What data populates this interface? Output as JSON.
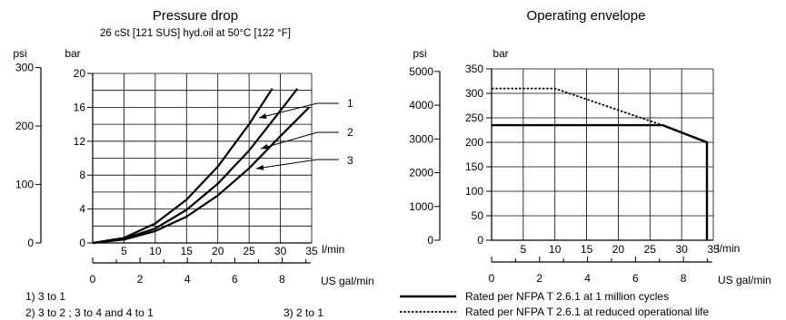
{
  "chart_data": [
    {
      "type": "line",
      "title": "Pressure drop",
      "subtitle": "26 cSt [121 SUS] hyd.oil at 50°C [122 °F]",
      "xlabel": "l/min",
      "ylabel": "bar",
      "x_secondary_label": "US gal/min",
      "y_secondary_label": "psi",
      "xlim": [
        0,
        35
      ],
      "ylim": [
        0,
        20
      ],
      "x_ticks": [
        "5",
        "10",
        "15",
        "20",
        "25",
        "30",
        "35"
      ],
      "y_ticks": [
        "0",
        "4",
        "8",
        "12",
        "16",
        "20"
      ],
      "x_secondary_ticks": [
        "0",
        "2",
        "4",
        "6",
        "8"
      ],
      "y_secondary_ticks": [
        "0",
        "100",
        "200",
        "300"
      ],
      "grid": true,
      "series": [
        {
          "name": "1",
          "x": [
            0,
            5,
            10,
            15,
            20,
            25,
            28.7
          ],
          "y": [
            0,
            0.6,
            2.3,
            5.1,
            9.0,
            14.0,
            18.2
          ]
        },
        {
          "name": "2",
          "x": [
            0,
            5,
            10,
            15,
            20,
            25,
            30,
            32.7
          ],
          "y": [
            0,
            0.5,
            1.7,
            3.9,
            7.0,
            10.9,
            15.6,
            18.2
          ]
        },
        {
          "name": "3",
          "x": [
            0,
            5,
            10,
            15,
            20,
            25,
            30,
            34.6
          ],
          "y": [
            0,
            0.4,
            1.4,
            3.1,
            5.6,
            8.8,
            12.6,
            16.0
          ]
        }
      ],
      "legend_notes": [
        "1) 3 to 1",
        "2) 3 to 2 ; 3 to 4 and 4 to 1",
        "3) 2 to 1"
      ]
    },
    {
      "type": "line",
      "title": "Operating envelope",
      "xlabel": "l/min",
      "ylabel": "bar",
      "x_secondary_label": "US gal/min",
      "y_secondary_label": "psi",
      "xlim": [
        0,
        35
      ],
      "ylim": [
        0,
        350
      ],
      "x_ticks": [
        "5",
        "10",
        "15",
        "20",
        "25",
        "30",
        "35"
      ],
      "y_ticks": [
        "0",
        "50",
        "100",
        "150",
        "200",
        "250",
        "300",
        "350"
      ],
      "x_secondary_ticks": [
        "0",
        "2",
        "4",
        "6",
        "8"
      ],
      "y_secondary_ticks": [
        "0",
        "1000",
        "2000",
        "3000",
        "4000",
        "5000"
      ],
      "grid": true,
      "series": [
        {
          "name": "Rated per NFPA T 2.6.1 at 1 million cycles",
          "style": "solid",
          "x": [
            0,
            27,
            34,
            34
          ],
          "y": [
            235,
            235,
            200,
            0
          ]
        },
        {
          "name": "Rated per NFPA T 2.6.1 at reduced operational life",
          "style": "dotted",
          "x": [
            0,
            10,
            27
          ],
          "y": [
            310,
            310,
            235
          ]
        }
      ],
      "legend_position": "bottom"
    }
  ]
}
